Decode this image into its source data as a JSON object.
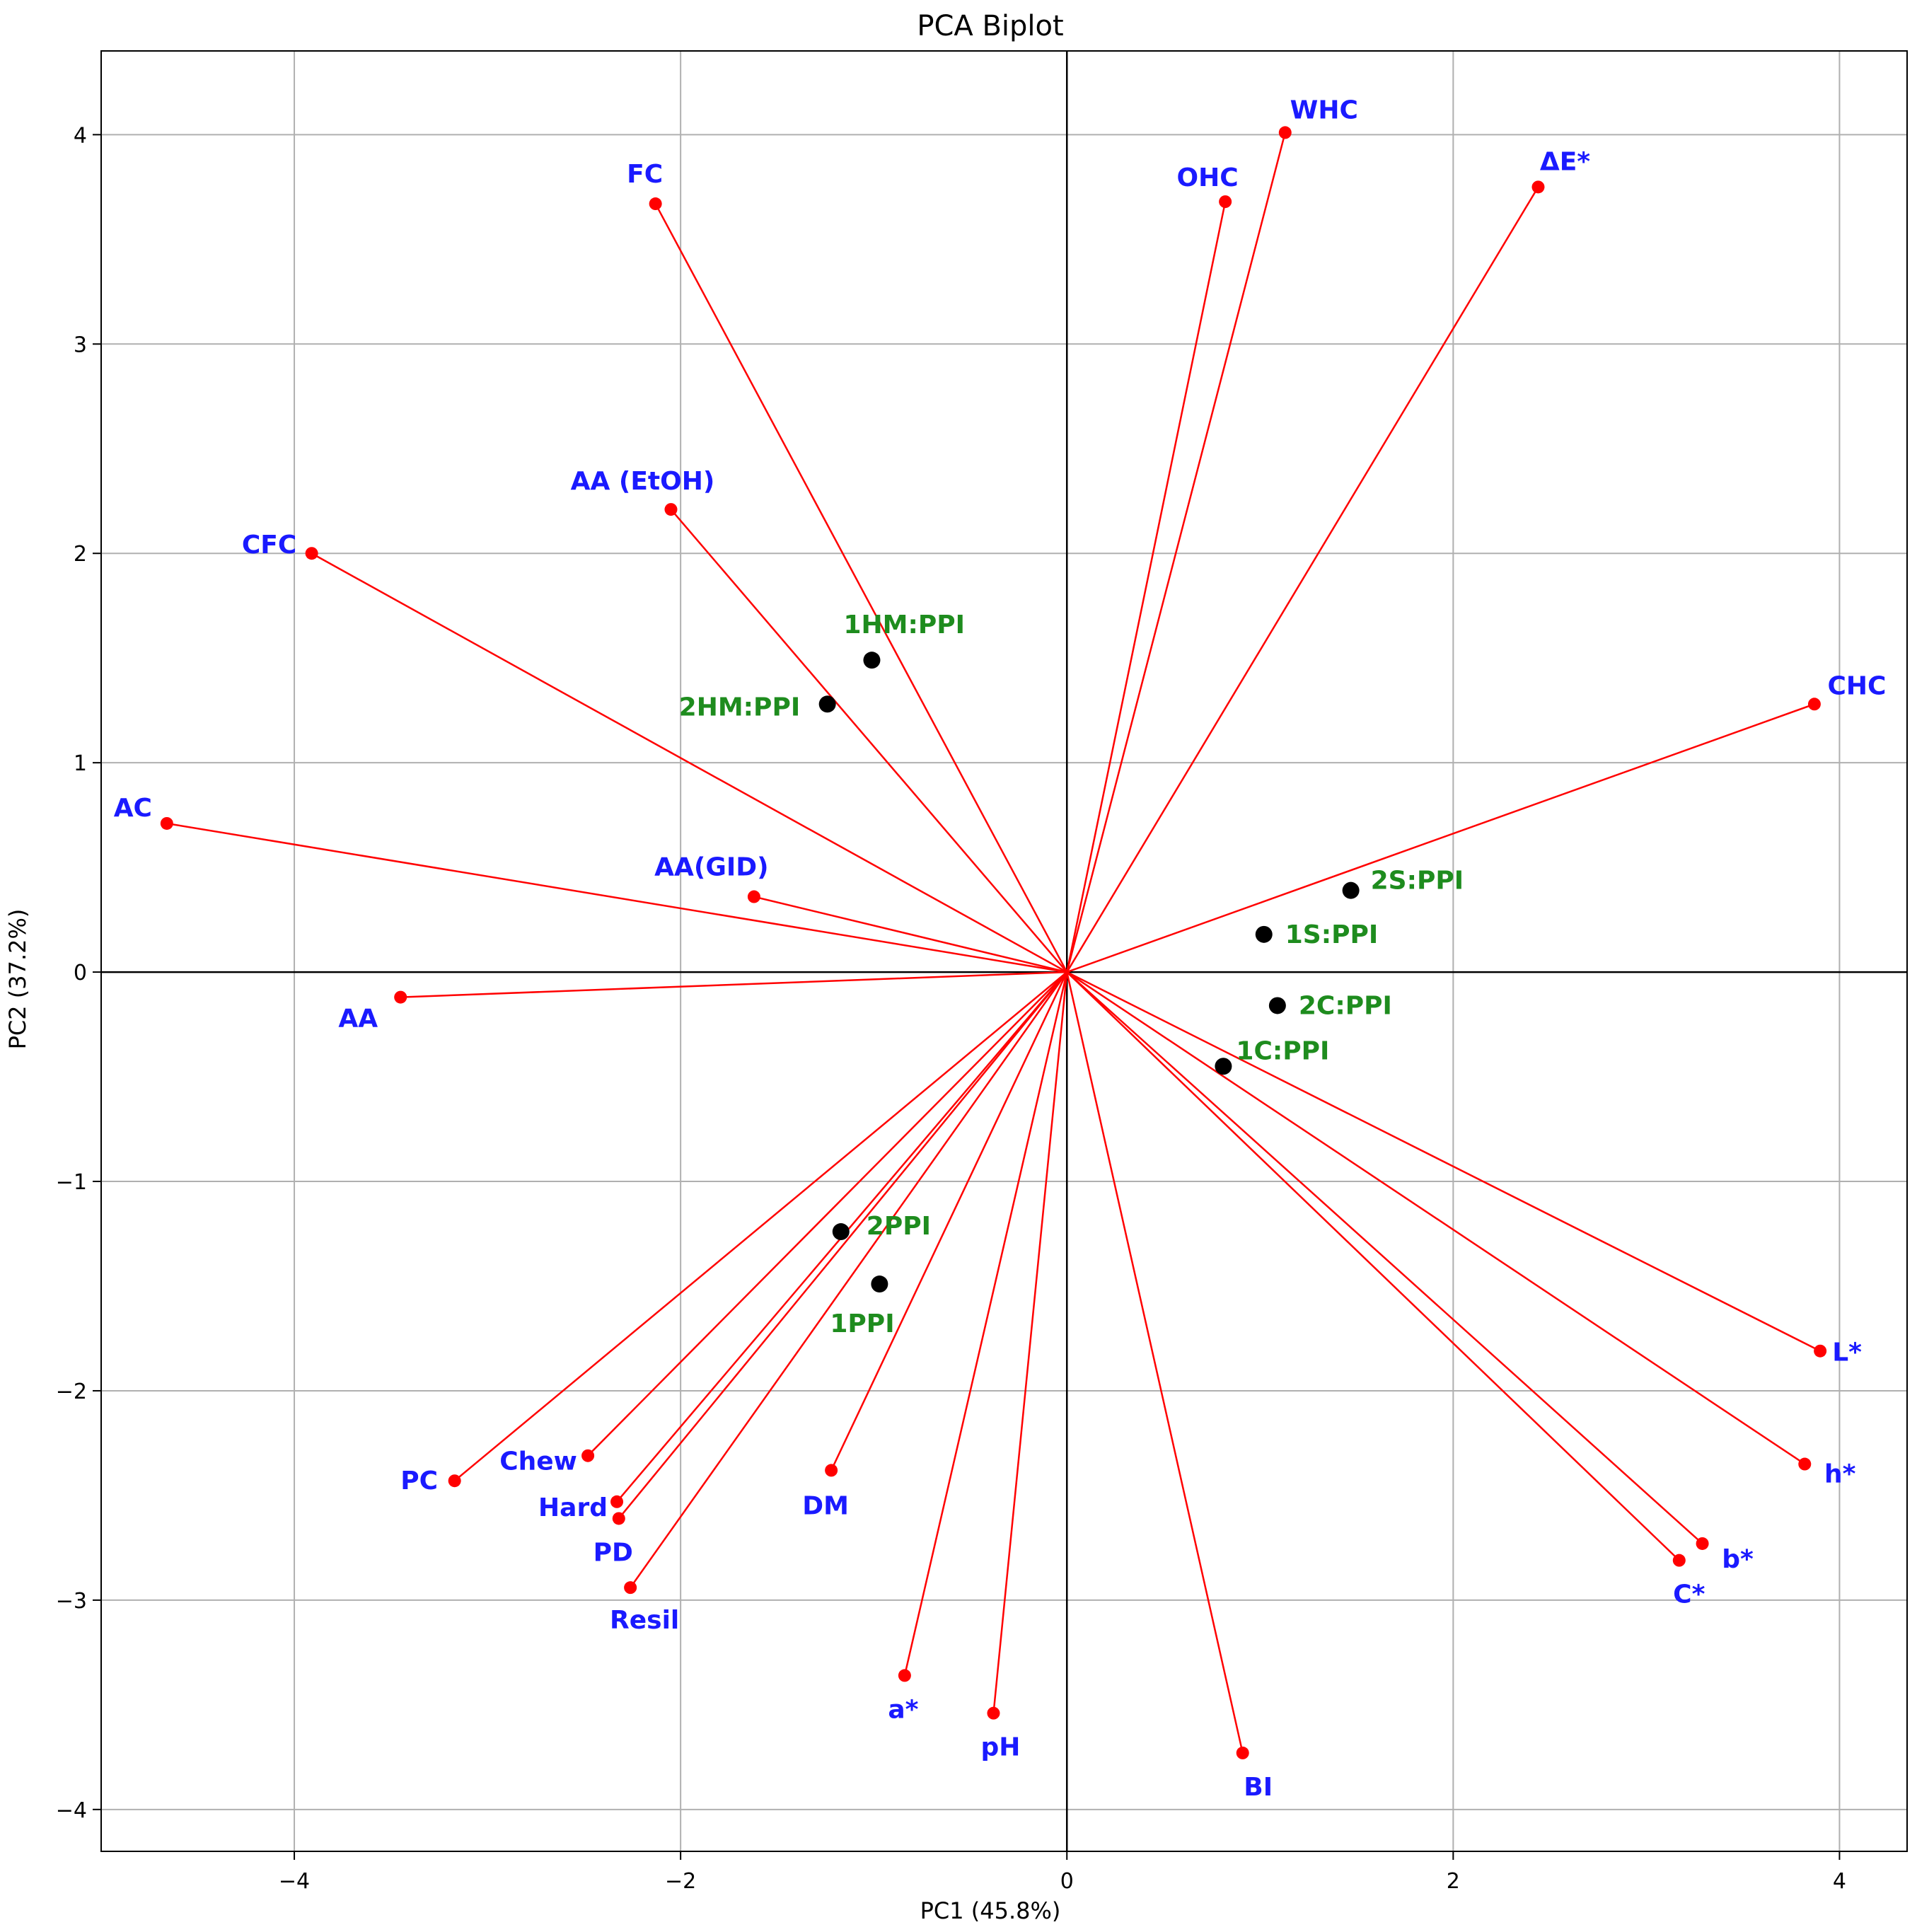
{
  "chart_data": {
    "type": "scatter",
    "subtype": "pca-biplot",
    "title": "PCA Biplot",
    "xlabel": "PC1 (45.8%)",
    "ylabel": "PC2 (37.2%)",
    "xlim": [
      -5.0,
      4.35
    ],
    "ylim": [
      -4.2,
      4.4
    ],
    "xticks": [
      -4,
      -2,
      0,
      2,
      4
    ],
    "yticks": [
      -4,
      -3,
      -2,
      -1,
      0,
      1,
      2,
      3,
      4
    ],
    "xtick_labels": [
      "−4",
      "−2",
      "0",
      "2",
      "4"
    ],
    "ytick_labels": [
      "−4",
      "−3",
      "−2",
      "−1",
      "0",
      "1",
      "2",
      "3",
      "4"
    ],
    "grid": true,
    "colors": {
      "loading": "#ff0000",
      "score": "#000000",
      "variable_text": "#1a1aff",
      "sample_text": "#1e8c1e"
    },
    "loadings": [
      {
        "name": "WHC",
        "x": 1.13,
        "y": 4.01
      },
      {
        "name": "OHC",
        "x": 0.82,
        "y": 3.68
      },
      {
        "name": "ΔE*",
        "x": 2.44,
        "y": 3.75
      },
      {
        "name": "FC",
        "x": -2.13,
        "y": 3.67
      },
      {
        "name": "AA (EtOH)",
        "x": -2.05,
        "y": 2.21
      },
      {
        "name": "CFC",
        "x": -3.91,
        "y": 2.0
      },
      {
        "name": "CHC",
        "x": 3.87,
        "y": 1.28
      },
      {
        "name": "AC",
        "x": -4.66,
        "y": 0.71
      },
      {
        "name": "AA(GID)",
        "x": -1.62,
        "y": 0.36
      },
      {
        "name": "AA",
        "x": -3.45,
        "y": -0.12
      },
      {
        "name": "L*",
        "x": 3.9,
        "y": -1.81
      },
      {
        "name": "h*",
        "x": 3.82,
        "y": -2.35
      },
      {
        "name": "b*",
        "x": 3.29,
        "y": -2.73
      },
      {
        "name": "C*",
        "x": 3.17,
        "y": -2.81
      },
      {
        "name": "Chew",
        "x": -2.48,
        "y": -2.31
      },
      {
        "name": "PC",
        "x": -3.17,
        "y": -2.43
      },
      {
        "name": "Hard",
        "x": -2.33,
        "y": -2.53
      },
      {
        "name": "PD",
        "x": -2.32,
        "y": -2.61
      },
      {
        "name": "Resil",
        "x": -2.26,
        "y": -2.94
      },
      {
        "name": "DM",
        "x": -1.22,
        "y": -2.38
      },
      {
        "name": "a*",
        "x": -0.84,
        "y": -3.36
      },
      {
        "name": "pH",
        "x": -0.38,
        "y": -3.54
      },
      {
        "name": "BI",
        "x": 0.91,
        "y": -3.73
      }
    ],
    "scores": [
      {
        "name": "1HM:PPI",
        "x": -1.01,
        "y": 1.49
      },
      {
        "name": "2HM:PPI",
        "x": -1.24,
        "y": 1.28
      },
      {
        "name": "2S:PPI",
        "x": 1.47,
        "y": 0.39
      },
      {
        "name": "1S:PPI",
        "x": 1.02,
        "y": 0.18
      },
      {
        "name": "2C:PPI",
        "x": 1.09,
        "y": -0.16
      },
      {
        "name": "1C:PPI",
        "x": 0.81,
        "y": -0.45
      },
      {
        "name": "2PPI",
        "x": -1.17,
        "y": -1.24
      },
      {
        "name": "1PPI",
        "x": -0.97,
        "y": -1.49
      }
    ]
  }
}
